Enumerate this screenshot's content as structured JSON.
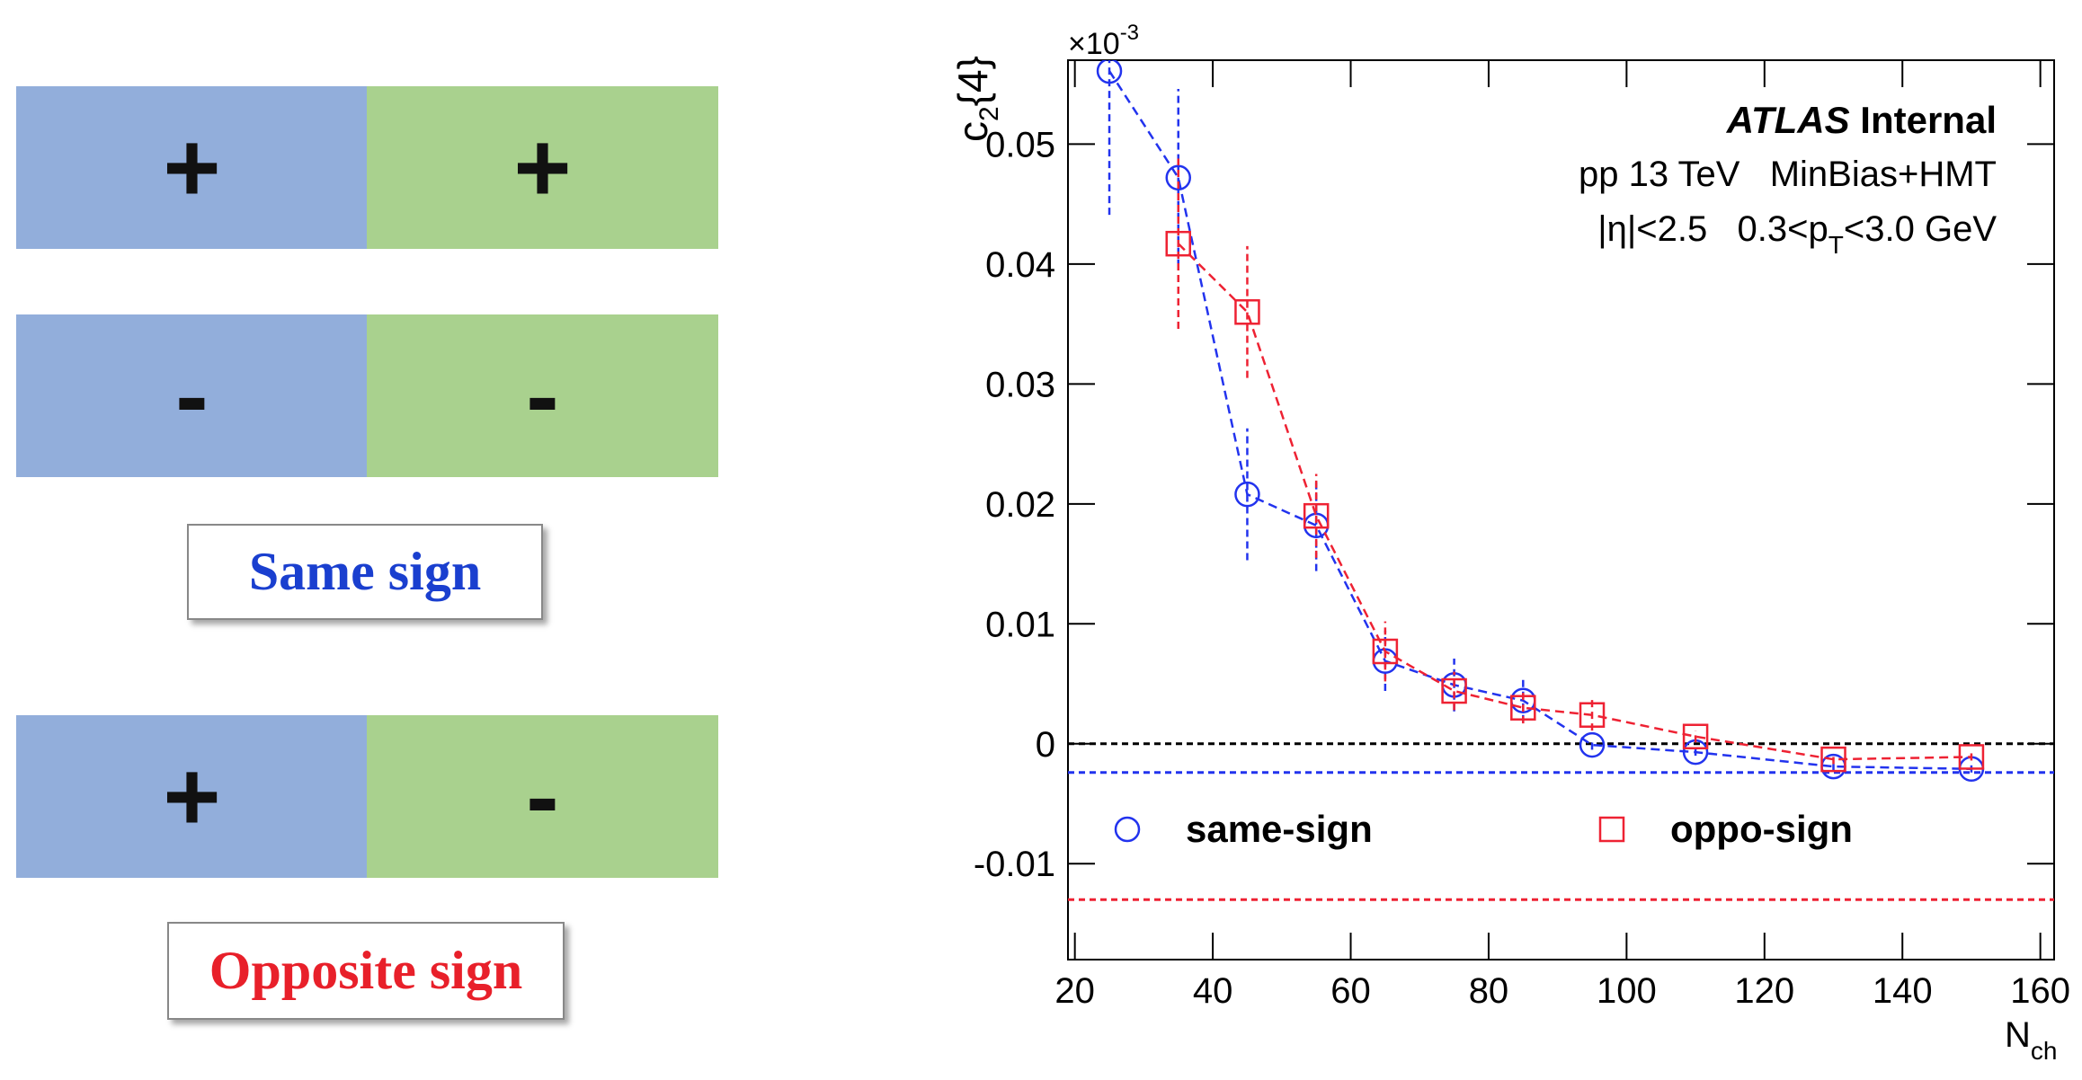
{
  "sign_panel": {
    "rows": [
      [
        "+",
        "+"
      ],
      [
        "-",
        "-"
      ]
    ],
    "same_label": "Same sign",
    "opposite_row": [
      "+",
      "-"
    ],
    "opposite_label": "Opposite sign"
  },
  "chart_data": {
    "type": "scatter",
    "y_label": {
      "main": "c",
      "sub": "2",
      "suffix": "{4}"
    },
    "x_label": {
      "main": "N",
      "sub": "ch"
    },
    "multiplier": {
      "base": "×10",
      "exponent": "-3"
    },
    "annotations": {
      "experiment": "ATLAS",
      "status": "Internal",
      "line2": "pp 13 TeV   MinBias+HMT",
      "line3": {
        "pre": "|η|<2.5   0.3<p",
        "sub": "T",
        "post": "<3.0 GeV"
      }
    },
    "xlim": [
      19,
      162
    ],
    "ylim": [
      -0.018,
      0.057
    ],
    "xticks": [
      20,
      40,
      60,
      80,
      100,
      120,
      140,
      160
    ],
    "yticks": [
      -0.01,
      0,
      0.01,
      0.02,
      0.03,
      0.04,
      0.05
    ],
    "reference_lines": [
      {
        "value": 0,
        "color": "#000000"
      },
      {
        "value": -0.0024,
        "color": "#2233ee"
      },
      {
        "value": -0.013,
        "color": "#ee2233"
      }
    ],
    "series": [
      {
        "name": "same-sign",
        "color": "#2233ee",
        "marker": "circle",
        "x": [
          25,
          35,
          45,
          55,
          65,
          75,
          85,
          95,
          110,
          130,
          150
        ],
        "values": [
          0.0561,
          0.0472,
          0.0208,
          0.0182,
          0.0069,
          0.0049,
          0.0036,
          -0.0001,
          -0.0007,
          -0.0019,
          -0.0021
        ],
        "errors": [
          0.012,
          0.0074,
          0.0055,
          0.0038,
          0.0025,
          0.0022,
          0.0018,
          0.0004,
          0.0003,
          0.0004,
          0.0003
        ]
      },
      {
        "name": "oppo-sign",
        "color": "#ee2233",
        "marker": "square",
        "x": [
          35,
          45,
          55,
          65,
          75,
          85,
          95,
          110,
          130,
          150
        ],
        "values": [
          0.0417,
          0.036,
          0.019,
          0.0077,
          0.0044,
          0.003,
          0.0024,
          0.0006,
          -0.0013,
          -0.0011
        ],
        "errors": [
          0.0071,
          0.0055,
          0.0035,
          0.0025,
          0.0016,
          0.0013,
          0.0013,
          0.0005,
          0.0004,
          0.0003
        ]
      }
    ]
  }
}
